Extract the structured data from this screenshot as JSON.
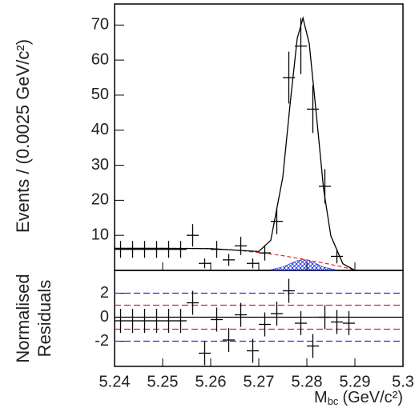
{
  "chart_data": [
    {
      "type": "errorbar",
      "y_label": "Events / (0.0025 GeV/c²)",
      "xlim": [
        5.24,
        5.3
      ],
      "ylim": [
        0,
        76
      ],
      "yticks": [
        10,
        20,
        30,
        40,
        50,
        60,
        70
      ],
      "bin_width": 0.0025,
      "x": [
        5.24125,
        5.24375,
        5.24625,
        5.24875,
        5.25125,
        5.25375,
        5.25625,
        5.25875,
        5.26125,
        5.26375,
        5.26625,
        5.26875,
        5.27125,
        5.27375,
        5.27625,
        5.27875,
        5.28125,
        5.28375,
        5.28625,
        5.28875
      ],
      "points": {
        "color": "#000000",
        "values": [
          6,
          6,
          6,
          6,
          6,
          6,
          10,
          2,
          6,
          3,
          7,
          2,
          5,
          14,
          55,
          64,
          46,
          24,
          4,
          0
        ],
        "errors": [
          2.4,
          2.4,
          2.4,
          2.4,
          2.4,
          2.4,
          3.2,
          1.4,
          2.4,
          1.7,
          2.6,
          1.4,
          2.2,
          3.7,
          7.4,
          8,
          6.8,
          4.9,
          2,
          0
        ]
      },
      "curves": [
        {
          "style": "hatched",
          "color": "#2030e0",
          "x": [
            5.2725,
            5.275,
            5.2765,
            5.278,
            5.2792,
            5.2805,
            5.282,
            5.2835,
            5.286
          ],
          "values": [
            0.2,
            1.0,
            1.9,
            2.8,
            3.1,
            2.8,
            1.9,
            0.9,
            0.2
          ]
        },
        {
          "style": "dashed",
          "color": "#e02020",
          "x": [
            5.24,
            5.25,
            5.255,
            5.26,
            5.265,
            5.27,
            5.275,
            5.28,
            5.285,
            5.289,
            5.29
          ],
          "values": [
            6.3,
            6.3,
            6.3,
            6.2,
            5.8,
            5.1,
            4.2,
            3.0,
            1.7,
            0.5,
            0
          ]
        },
        {
          "style": "solid",
          "color": "#000000",
          "x": [
            5.24,
            5.25,
            5.26,
            5.265,
            5.27,
            5.2725,
            5.275,
            5.2765,
            5.278,
            5.2792,
            5.2805,
            5.282,
            5.2835,
            5.285,
            5.2875,
            5.29
          ],
          "values": [
            6.3,
            6.3,
            6.2,
            5.8,
            5.4,
            8.6,
            26.6,
            47.2,
            66.2,
            72,
            64.7,
            44.2,
            23,
            9.8,
            1.9,
            0
          ]
        }
      ]
    },
    {
      "type": "errorbar",
      "y_label_lines": [
        "Normalised",
        "Residuals"
      ],
      "x_label_symbol": "M",
      "x_label_subscript": "bc",
      "x_label_unit": "(GeV/c²)",
      "xlim": [
        5.24,
        5.3
      ],
      "ylim": [
        -4.1,
        3.9
      ],
      "xticks": [
        5.24,
        5.25,
        5.26,
        5.27,
        5.28,
        5.29,
        5.3
      ],
      "yticks": [
        -2,
        0,
        2
      ],
      "bin_width": 0.0025,
      "x": [
        5.24125,
        5.24375,
        5.24625,
        5.24875,
        5.25125,
        5.25375,
        5.25625,
        5.25875,
        5.26125,
        5.26375,
        5.26625,
        5.26875,
        5.27125,
        5.27375,
        5.27625,
        5.27875,
        5.28125,
        5.28375,
        5.28625,
        5.28875
      ],
      "points": {
        "color": "#000000",
        "values": [
          -0.3,
          -0.3,
          -0.3,
          -0.3,
          -0.3,
          -0.3,
          1.2,
          -3,
          -0.2,
          -1.9,
          0.2,
          -2.8,
          -0.6,
          0.3,
          2.2,
          -0.5,
          -2.4,
          0,
          -0.4,
          -0.5
        ],
        "errors": [
          1,
          1,
          1,
          1,
          1,
          1,
          1,
          1,
          1,
          1,
          1,
          1,
          1,
          1,
          1,
          1,
          1,
          1,
          1,
          1
        ]
      },
      "reference_lines": [
        {
          "value": 0,
          "color": "#000000",
          "style": "solid"
        },
        {
          "value": 1,
          "color": "#e02020",
          "style": "dashed"
        },
        {
          "value": -1,
          "color": "#e02020",
          "style": "dashed"
        },
        {
          "value": 2,
          "color": "#2030e0",
          "style": "dashed"
        },
        {
          "value": -2,
          "color": "#2030e0",
          "style": "dashed"
        }
      ]
    }
  ]
}
